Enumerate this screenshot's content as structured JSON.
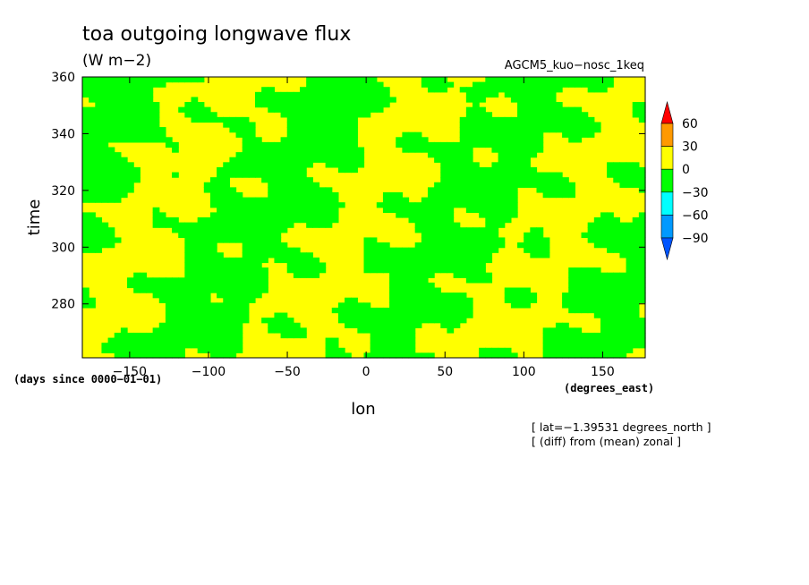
{
  "chart_data": {
    "type": "heatmap",
    "title": "toa outgoing longwave flux",
    "units": "(W m−2)",
    "dataset": "AGCM5_kuo−nosc_1keq",
    "xlabel": "lon",
    "ylabel": "time",
    "x_units": "(degrees_east)",
    "y_units": "(days since 0000−01−01)",
    "xlim": [
      -180,
      177
    ],
    "ylim": [
      261,
      360
    ],
    "x_ticks": [
      -150,
      -100,
      -50,
      0,
      50,
      100,
      150
    ],
    "x_tick_labels": [
      "−150",
      "−100",
      "−50",
      "0",
      "50",
      "100",
      "150"
    ],
    "y_ticks": [
      280,
      300,
      320,
      340,
      360
    ],
    "y_tick_labels": [
      "280",
      "300",
      "320",
      "340",
      "360"
    ],
    "annotations": [
      "[ lat=−1.39531 degrees_north ]",
      "[ (diff) from (mean) zonal ]"
    ],
    "dominant_bins": [
      "0 to 30 (yellow)",
      "−30 to 0 (green)"
    ],
    "colorbar": {
      "levels": [
        60,
        30,
        0,
        -30,
        -60,
        -90
      ],
      "level_labels": [
        "60",
        "30",
        "0",
        "−30",
        "−60",
        "−90"
      ],
      "colors": [
        "#ff0000",
        "#ff9900",
        "#ffff00",
        "#00ff00",
        "#00ffff",
        "#0099ff",
        "#0055ff"
      ],
      "extend": "both"
    },
    "colors": {
      "positive_0_30": "#ffff00",
      "negative_m30_0": "#00ff00"
    }
  }
}
